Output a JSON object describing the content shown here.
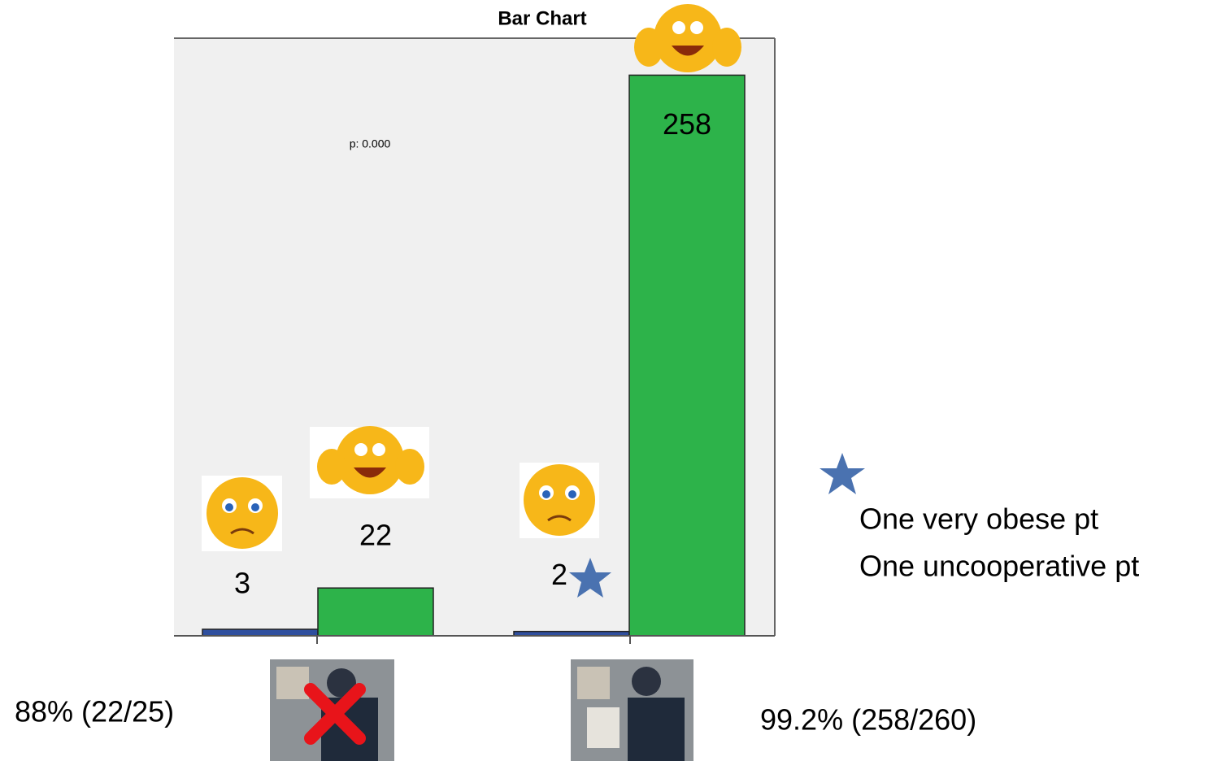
{
  "chart_data": {
    "type": "bar",
    "title": "Bar Chart",
    "categories": [
      null,
      null
    ],
    "series": [
      {
        "color": "#2f4f9e",
        "values": [
          3,
          2
        ]
      },
      {
        "color": "#2db34a",
        "values": [
          22,
          258
        ]
      }
    ],
    "ylim": [
      0,
      275
    ],
    "annotations": [
      "p: 0.000",
      "88% (22/25)",
      "99.2% (258/260)",
      "One very obese pt",
      "One uncooperative pt"
    ]
  }
}
